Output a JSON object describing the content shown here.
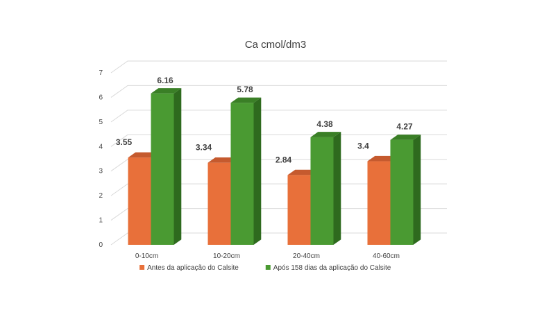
{
  "chart_data": {
    "type": "bar",
    "title": "Ca cmol/dm3",
    "categories": [
      "0-10cm",
      "10-20cm",
      "20-40cm",
      "40-60cm"
    ],
    "series": [
      {
        "name": "Antes da aplicação do Calsite",
        "values": [
          3.55,
          3.34,
          2.84,
          3.4
        ],
        "labels": [
          "3.55",
          "3.34",
          "2.84",
          "3.4"
        ],
        "color": "#E8703A",
        "side_color": "#B5532A",
        "top_color": "#C55A2E"
      },
      {
        "name": "Após 158 dias da aplicação do Calsite",
        "values": [
          6.16,
          5.78,
          4.38,
          4.27
        ],
        "labels": [
          "6.16",
          "5.78",
          "4.38",
          "4.27"
        ],
        "color": "#4A9A32",
        "side_color": "#2E6A1E",
        "top_color": "#3A7F26"
      }
    ],
    "ylim": [
      0,
      7
    ],
    "yticks": [
      "0",
      "1",
      "2",
      "3",
      "4",
      "5",
      "6",
      "7"
    ],
    "grid": true,
    "legend": "bottom",
    "style": "3d-clustered-column"
  }
}
